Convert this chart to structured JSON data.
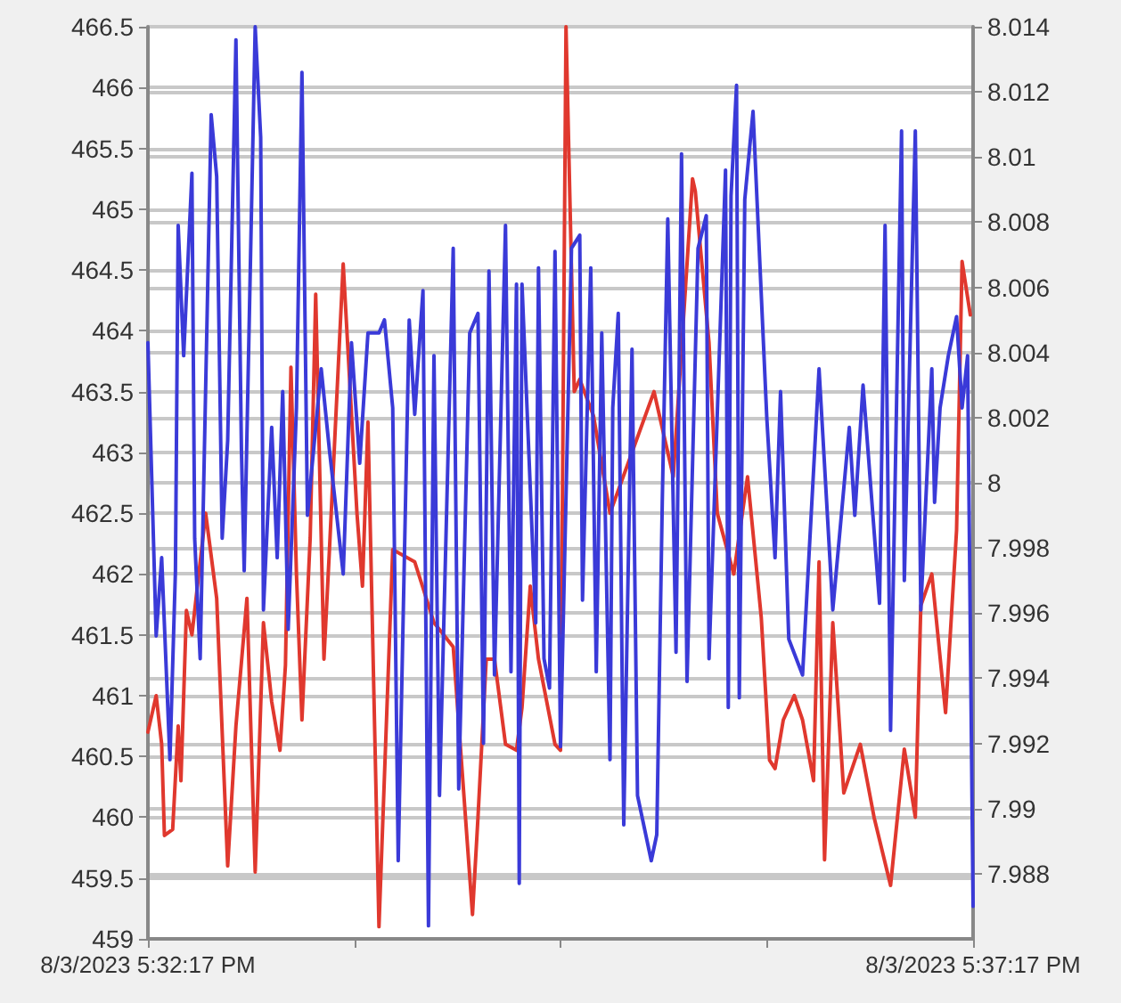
{
  "chart_data": {
    "type": "line",
    "marker": "none",
    "line_style": "solid",
    "grid": "y",
    "xlim": [
      "2023-08-03T17:32:17",
      "2023-08-03T17:37:17"
    ],
    "xticks": [
      {
        "value": "2023-08-03T17:32:17",
        "label": "8/3/2023 5:32:17 PM"
      },
      {
        "value": "2023-08-03T17:33:32",
        "label": null
      },
      {
        "value": "2023-08-03T17:34:47",
        "label": null
      },
      {
        "value": "2023-08-03T17:36:02",
        "label": null
      },
      {
        "value": "2023-08-03T17:37:17",
        "label": "8/3/2023 5:37:17 PM"
      }
    ],
    "ylim": [
      459,
      466.5
    ],
    "yticks": [
      459,
      459.5,
      460,
      460.5,
      461,
      461.5,
      462,
      462.5,
      463,
      463.5,
      464,
      464.5,
      465,
      465.5,
      466,
      466.5
    ],
    "y2lim": [
      7.986,
      8.014
    ],
    "y2ticks": [
      7.988,
      7.99,
      7.992,
      7.994,
      7.996,
      7.998,
      8,
      8.002,
      8.004,
      8.006,
      8.008,
      8.01,
      8.012,
      8.014
    ],
    "series": [
      {
        "color": "#e0382e",
        "x": [
          "2023-08-03T17:32:17",
          "2023-08-03T17:32:20",
          "2023-08-03T17:32:22",
          "2023-08-03T17:32:23",
          "2023-08-03T17:32:26",
          "2023-08-03T17:32:28",
          "2023-08-03T17:32:29",
          "2023-08-03T17:32:31",
          "2023-08-03T17:32:33",
          "2023-08-03T17:32:38",
          "2023-08-03T17:32:42",
          "2023-08-03T17:32:46",
          "2023-08-03T17:32:49",
          "2023-08-03T17:32:53",
          "2023-08-03T17:32:56",
          "2023-08-03T17:32:59",
          "2023-08-03T17:33:02",
          "2023-08-03T17:33:05",
          "2023-08-03T17:33:07",
          "2023-08-03T17:33:09",
          "2023-08-03T17:33:11",
          "2023-08-03T17:33:13",
          "2023-08-03T17:33:16",
          "2023-08-03T17:33:18",
          "2023-08-03T17:33:21",
          "2023-08-03T17:33:23",
          "2023-08-03T17:33:28",
          "2023-08-03T17:33:33",
          "2023-08-03T17:33:35",
          "2023-08-03T17:33:37",
          "2023-08-03T17:33:41",
          "2023-08-03T17:33:46",
          "2023-08-03T17:33:54",
          "2023-08-03T17:34:01",
          "2023-08-03T17:34:08",
          "2023-08-03T17:34:15",
          "2023-08-03T17:34:17",
          "2023-08-03T17:34:20",
          "2023-08-03T17:34:23",
          "2023-08-03T17:34:27",
          "2023-08-03T17:34:31",
          "2023-08-03T17:34:33",
          "2023-08-03T17:34:36",
          "2023-08-03T17:34:39",
          "2023-08-03T17:34:45",
          "2023-08-03T17:34:47",
          "2023-08-03T17:34:49",
          "2023-08-03T17:34:52",
          "2023-08-03T17:34:54",
          "2023-08-03T17:34:59",
          "2023-08-03T17:35:05",
          "2023-08-03T17:35:21",
          "2023-08-03T17:35:28",
          "2023-08-03T17:35:35",
          "2023-08-03T17:35:36",
          "2023-08-03T17:35:41",
          "2023-08-03T17:35:44",
          "2023-08-03T17:35:50",
          "2023-08-03T17:35:55",
          "2023-08-03T17:36:00",
          "2023-08-03T17:36:03",
          "2023-08-03T17:36:05",
          "2023-08-03T17:36:08",
          "2023-08-03T17:36:12",
          "2023-08-03T17:36:15",
          "2023-08-03T17:36:19",
          "2023-08-03T17:36:21",
          "2023-08-03T17:36:23",
          "2023-08-03T17:36:26",
          "2023-08-03T17:36:30",
          "2023-08-03T17:36:36",
          "2023-08-03T17:36:41",
          "2023-08-03T17:36:47",
          "2023-08-03T17:36:52",
          "2023-08-03T17:36:56",
          "2023-08-03T17:36:58",
          "2023-08-03T17:37:02",
          "2023-08-03T17:37:07",
          "2023-08-03T17:37:11",
          "2023-08-03T17:37:13",
          "2023-08-03T17:37:16"
        ],
        "values": [
          460.7,
          461.0,
          460.6,
          459.85,
          459.9,
          460.75,
          460.3,
          461.7,
          461.5,
          462.5,
          461.8,
          459.6,
          460.75,
          461.8,
          459.55,
          461.6,
          460.95,
          460.55,
          461.25,
          463.7,
          462.0,
          460.8,
          462.3,
          464.3,
          461.3,
          462.2,
          464.55,
          462.5,
          461.9,
          463.25,
          459.1,
          462.2,
          462.1,
          461.6,
          461.4,
          459.2,
          460.0,
          461.3,
          461.3,
          460.6,
          460.55,
          460.9,
          461.9,
          461.3,
          460.6,
          460.55,
          466.5,
          463.5,
          463.6,
          463.3,
          462.5,
          463.5,
          462.8,
          465.25,
          465.15,
          463.9,
          462.5,
          462.0,
          462.8,
          461.64,
          460.47,
          460.4,
          460.8,
          461.0,
          460.8,
          460.3,
          462.1,
          459.65,
          461.6,
          460.2,
          460.6,
          460.0,
          459.44,
          460.56,
          460.0,
          461.74,
          462.0,
          460.86,
          462.36,
          464.57,
          464.13
        ]
      },
      {
        "color": "#3a3ad8",
        "axis": "y2",
        "x": [
          "2023-08-03T17:32:17",
          "2023-08-03T17:32:20",
          "2023-08-03T17:32:22",
          "2023-08-03T17:32:25",
          "2023-08-03T17:32:27",
          "2023-08-03T17:32:28",
          "2023-08-03T17:32:30",
          "2023-08-03T17:32:33",
          "2023-08-03T17:32:34",
          "2023-08-03T17:32:36",
          "2023-08-03T17:32:40",
          "2023-08-03T17:32:42",
          "2023-08-03T17:32:44",
          "2023-08-03T17:32:46",
          "2023-08-03T17:32:49",
          "2023-08-03T17:32:51",
          "2023-08-03T17:32:52",
          "2023-08-03T17:32:56",
          "2023-08-03T17:32:58",
          "2023-08-03T17:32:59",
          "2023-08-03T17:33:02",
          "2023-08-03T17:33:04",
          "2023-08-03T17:33:06",
          "2023-08-03T17:33:08",
          "2023-08-03T17:33:11",
          "2023-08-03T17:33:13",
          "2023-08-03T17:33:15",
          "2023-08-03T17:33:20",
          "2023-08-03T17:33:23",
          "2023-08-03T17:33:28",
          "2023-08-03T17:33:31",
          "2023-08-03T17:33:34",
          "2023-08-03T17:33:37",
          "2023-08-03T17:33:41",
          "2023-08-03T17:33:43",
          "2023-08-03T17:33:46",
          "2023-08-03T17:33:48",
          "2023-08-03T17:33:52",
          "2023-08-03T17:33:54",
          "2023-08-03T17:33:57",
          "2023-08-03T17:33:59",
          "2023-08-03T17:34:01",
          "2023-08-03T17:34:03",
          "2023-08-03T17:34:08",
          "2023-08-03T17:34:10",
          "2023-08-03T17:34:14",
          "2023-08-03T17:34:17",
          "2023-08-03T17:34:19",
          "2023-08-03T17:34:21",
          "2023-08-03T17:34:23",
          "2023-08-03T17:34:27",
          "2023-08-03T17:34:29",
          "2023-08-03T17:34:31",
          "2023-08-03T17:34:32",
          "2023-08-03T17:34:33",
          "2023-08-03T17:34:38",
          "2023-08-03T17:34:39",
          "2023-08-03T17:34:41",
          "2023-08-03T17:34:43",
          "2023-08-03T17:34:45",
          "2023-08-03T17:34:47",
          "2023-08-03T17:34:51",
          "2023-08-03T17:34:54",
          "2023-08-03T17:34:55",
          "2023-08-03T17:34:58",
          "2023-08-03T17:35:00",
          "2023-08-03T17:35:02",
          "2023-08-03T17:35:05",
          "2023-08-03T17:35:06",
          "2023-08-03T17:35:08",
          "2023-08-03T17:35:10",
          "2023-08-03T17:35:13",
          "2023-08-03T17:35:15",
          "2023-08-03T17:35:20",
          "2023-08-03T17:35:22",
          "2023-08-03T17:35:24",
          "2023-08-03T17:35:26",
          "2023-08-03T17:35:29",
          "2023-08-03T17:35:31",
          "2023-08-03T17:35:33",
          "2023-08-03T17:35:37",
          "2023-08-03T17:35:40",
          "2023-08-03T17:35:41",
          "2023-08-03T17:35:47",
          "2023-08-03T17:35:48",
          "2023-08-03T17:35:49",
          "2023-08-03T17:35:51",
          "2023-08-03T17:35:52",
          "2023-08-03T17:35:54",
          "2023-08-03T17:35:57",
          "2023-08-03T17:36:02",
          "2023-08-03T17:36:05",
          "2023-08-03T17:36:07",
          "2023-08-03T17:36:10",
          "2023-08-03T17:36:15",
          "2023-08-03T17:36:21",
          "2023-08-03T17:36:26",
          "2023-08-03T17:36:32",
          "2023-08-03T17:36:34",
          "2023-08-03T17:36:37",
          "2023-08-03T17:36:43",
          "2023-08-03T17:36:45",
          "2023-08-03T17:36:47",
          "2023-08-03T17:36:51",
          "2023-08-03T17:36:52",
          "2023-08-03T17:36:56",
          "2023-08-03T17:36:58",
          "2023-08-03T17:37:02",
          "2023-08-03T17:37:03",
          "2023-08-03T17:37:05",
          "2023-08-03T17:37:08",
          "2023-08-03T17:37:11",
          "2023-08-03T17:37:13",
          "2023-08-03T17:37:15",
          "2023-08-03T17:37:17"
        ],
        "values": [
          8.0043,
          7.9953,
          7.9977,
          7.9915,
          7.9973,
          8.0079,
          8.0039,
          8.0095,
          7.9983,
          7.9946,
          8.0113,
          8.0094,
          7.9983,
          8.0013,
          8.0136,
          8.001,
          7.9973,
          8.014,
          8.0106,
          7.9961,
          8.0017,
          7.9977,
          8.0028,
          7.9955,
          8.0023,
          8.0126,
          7.999,
          8.0035,
          8.001,
          7.9972,
          8.0043,
          8.0006,
          8.0046,
          8.0046,
          8.005,
          8.0023,
          7.9884,
          8.005,
          8.0021,
          8.0059,
          7.9864,
          8.0039,
          7.9904,
          8.0072,
          7.9906,
          8.0046,
          8.0052,
          7.992,
          8.0065,
          7.9941,
          8.0079,
          7.9942,
          8.0061,
          7.9877,
          8.0061,
          7.9957,
          8.0066,
          7.9946,
          7.9937,
          8.0071,
          7.9919,
          8.0072,
          8.0076,
          7.9964,
          8.0066,
          7.9942,
          8.0046,
          7.9915,
          8.0023,
          8.0052,
          7.9895,
          8.0041,
          7.9904,
          7.9884,
          7.9892,
          7.9994,
          8.0081,
          7.9948,
          8.0101,
          7.9939,
          8.0072,
          8.0082,
          7.9946,
          8.0096,
          7.9931,
          8.0088,
          8.0122,
          7.9934,
          8.0087,
          8.0114,
          8.002,
          7.9977,
          8.0028,
          7.9952,
          7.9941,
          8.0035,
          7.9961,
          8.0017,
          7.999,
          8.003,
          7.9963,
          8.0079,
          7.9924,
          8.0108,
          7.997,
          8.0108,
          7.9961,
          8.0035,
          7.9994,
          8.0023,
          8.0039,
          8.0051,
          8.0023,
          8.0039,
          7.987
        ]
      }
    ]
  }
}
